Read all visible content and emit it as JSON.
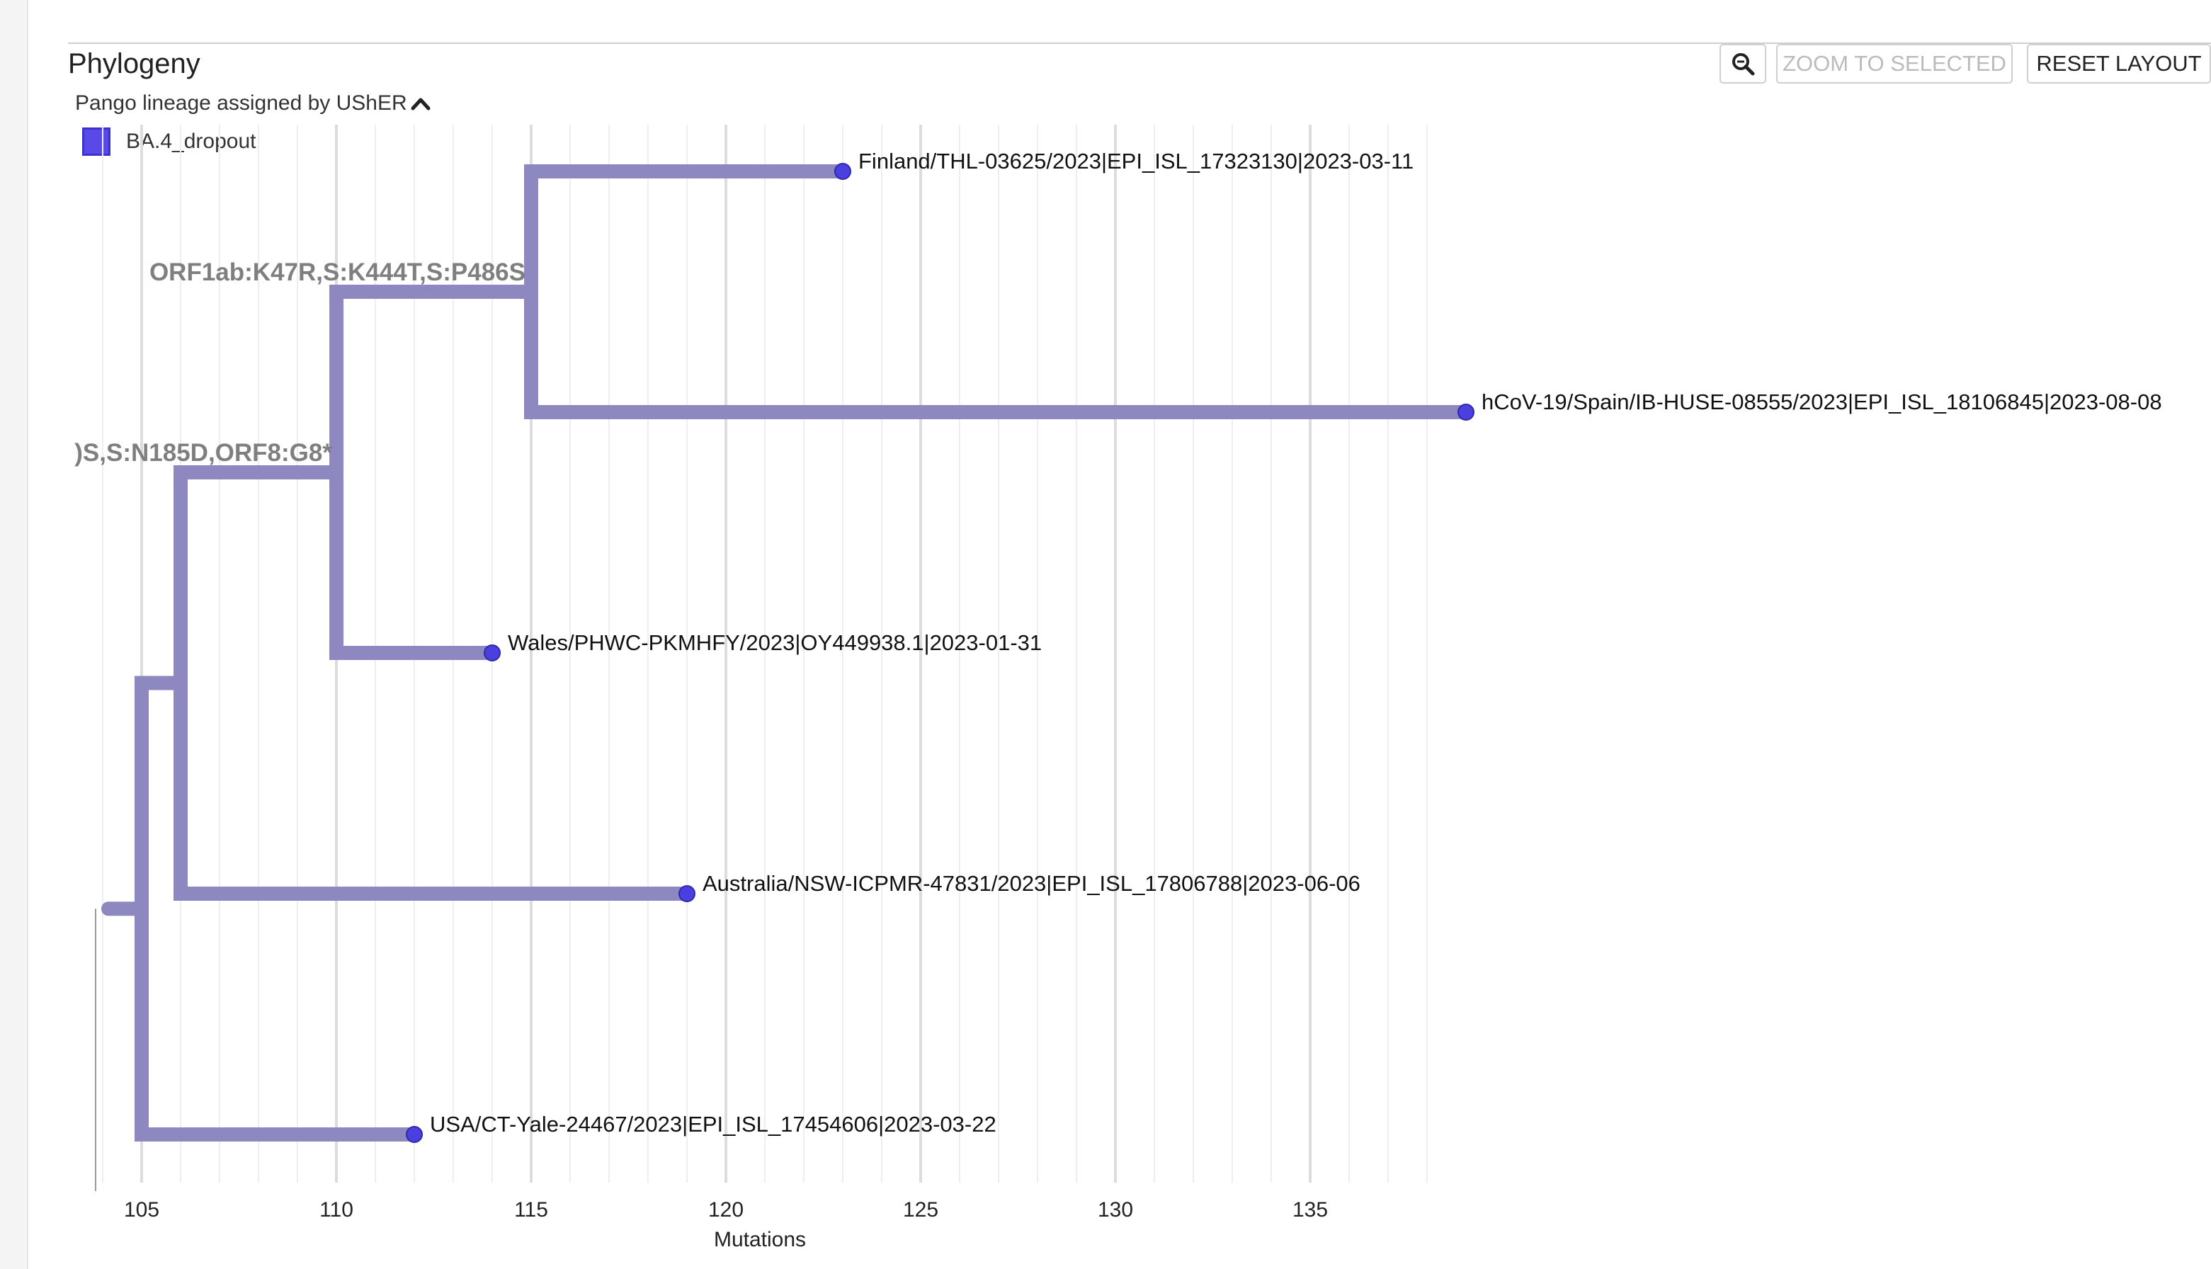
{
  "panel": {
    "title": "Phylogeny",
    "zoom_to_selected_label": "ZOOM TO SELECTED",
    "reset_layout_label": "RESET LAYOUT"
  },
  "legend": {
    "header": "Pango lineage assigned by UShER",
    "items": [
      {
        "label": "BA.4_dropout",
        "color": "#5b48e8"
      }
    ]
  },
  "colors": {
    "branch": "#8d88bf",
    "tip": "#4b3fe0",
    "tip_border": "#2f2aa8",
    "mutation_text": "#7f7f7f",
    "grid_major": "#dcdcdc",
    "grid_minor": "#eeeeee"
  },
  "chart_data": {
    "type": "phylogenetic-tree",
    "xlabel": "Mutations",
    "x_ticks": [
      105,
      110,
      115,
      120,
      125,
      130,
      135
    ],
    "tips": [
      {
        "label": "Finland/THL-03625/2023|EPI_ISL_17323130|2023-03-11",
        "mutations": 123
      },
      {
        "label": "hCoV-19/Spain/IB-HUSE-08555/2023|EPI_ISL_18106845|2023-08-08",
        "mutations": 139
      },
      {
        "label": "Wales/PHWC-PKMHFY/2023|OY449938.1|2023-01-31",
        "mutations": 114
      },
      {
        "label": "Australia/NSW-ICPMR-47831/2023|EPI_ISL_17806788|2023-06-06",
        "mutations": 119
      },
      {
        "label": "USA/CT-Yale-24467/2023|EPI_ISL_17454606|2023-03-22",
        "mutations": 112
      }
    ],
    "internal_nodes": [
      {
        "mutations": 115
      },
      {
        "mutations": 110
      },
      {
        "mutations": 106
      },
      {
        "mutations": 105
      },
      {
        "mutations": 104
      }
    ],
    "branch_labels": [
      {
        "text": "ORF1ab:K47R,S:K444T,S:P486S"
      },
      {
        "text": ")S,S:N185D,ORF8:G8*"
      }
    ]
  }
}
